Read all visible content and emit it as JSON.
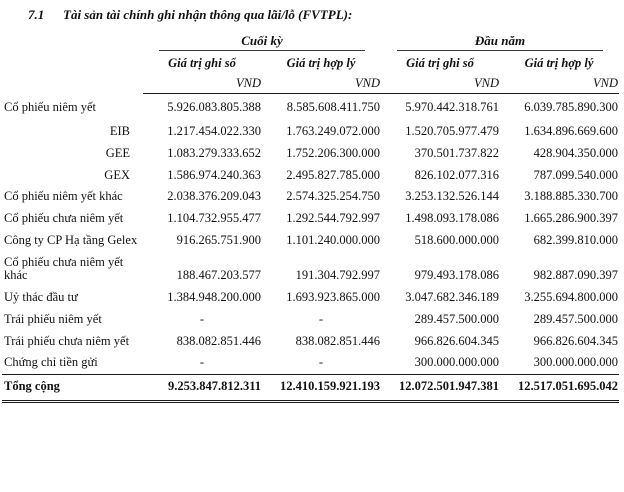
{
  "title": {
    "number": "7.1",
    "text": "Tài sản tài chính ghi nhận thông qua lãi/lỗ (FVTPL):"
  },
  "table": {
    "group_headers": [
      "Cuối kỳ",
      "Đầu năm"
    ],
    "column_headers": [
      "Giá trị ghi sổ",
      "Giá trị hợp lý",
      "Giá trị ghi sổ",
      "Giá trị hợp lý"
    ],
    "unit_label": "VND",
    "rows": [
      {
        "label": "Cổ phiếu niêm yết",
        "bold": true,
        "indent": false,
        "values": [
          "5.926.083.805.388",
          "8.585.608.411.750",
          "5.970.442.318.761",
          "6.039.785.890.300"
        ]
      },
      {
        "label": "EIB",
        "bold": false,
        "indent": true,
        "values": [
          "1.217.454.022.330",
          "1.763.249.072.000",
          "1.520.705.977.479",
          "1.634.896.669.600"
        ]
      },
      {
        "label": "GEE",
        "bold": false,
        "indent": true,
        "values": [
          "1.083.279.333.652",
          "1.752.206.300.000",
          "370.501.737.822",
          "428.904.350.000"
        ]
      },
      {
        "label": "GEX",
        "bold": false,
        "indent": true,
        "values": [
          "1.586.974.240.363",
          "2.495.827.785.000",
          "826.102.077.316",
          "787.099.540.000"
        ]
      },
      {
        "label": "Cổ phiếu niêm yết khác",
        "bold": false,
        "indent": false,
        "values": [
          "2.038.376.209.043",
          "2.574.325.254.750",
          "3.253.132.526.144",
          "3.188.885.330.700"
        ]
      },
      {
        "label": "Cổ phiếu chưa niêm yết",
        "bold": true,
        "indent": false,
        "values": [
          "1.104.732.955.477",
          "1.292.544.792.997",
          "1.498.093.178.086",
          "1.665.286.900.397"
        ]
      },
      {
        "label": "Công ty CP Hạ tầng Gelex",
        "bold": false,
        "indent": false,
        "values": [
          "916.265.751.900",
          "1.101.240.000.000",
          "518.600.000.000",
          "682.399.810.000"
        ]
      },
      {
        "label": "Cổ phiếu chưa niêm yết khác",
        "bold": false,
        "indent": false,
        "values": [
          "188.467.203.577",
          "191.304.792.997",
          "979.493.178.086",
          "982.887.090.397"
        ]
      },
      {
        "label": "Uỷ thác đầu tư",
        "bold": true,
        "indent": false,
        "values": [
          "1.384.948.200.000",
          "1.693.923.865.000",
          "3.047.682.346.189",
          "3.255.694.800.000"
        ]
      },
      {
        "label": "Trái phiếu niêm yết",
        "bold": true,
        "indent": false,
        "values": [
          "-",
          "-",
          "289.457.500.000",
          "289.457.500.000"
        ]
      },
      {
        "label": "Trái phiếu chưa niêm yết",
        "bold": true,
        "indent": false,
        "values": [
          "838.082.851.446",
          "838.082.851.446",
          "966.826.604.345",
          "966.826.604.345"
        ]
      },
      {
        "label": "Chứng chỉ tiền gửi",
        "bold": true,
        "indent": false,
        "values": [
          "-",
          "-",
          "300.000.000.000",
          "300.000.000.000"
        ]
      }
    ],
    "total": {
      "label": "Tổng cộng",
      "values": [
        "9.253.847.812.311",
        "12.410.159.921.193",
        "12.072.501.947.381",
        "12.517.051.695.042"
      ]
    }
  }
}
